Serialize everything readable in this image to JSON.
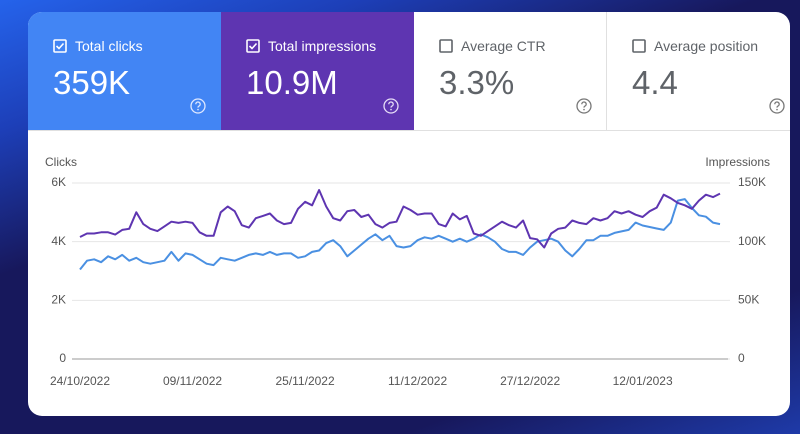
{
  "cards": [
    {
      "label": "Total clicks",
      "value": "359K"
    },
    {
      "label": "Total impressions",
      "value": "10.9M"
    },
    {
      "label": "Average CTR",
      "value": "3.3%"
    },
    {
      "label": "Average position",
      "value": "4.4"
    }
  ],
  "chart_data": {
    "type": "line",
    "y_label": "Clicks",
    "y2_label": "Impressions",
    "categories": [
      "24/10/2022",
      null,
      null,
      null,
      null,
      null,
      null,
      null,
      null,
      null,
      null,
      null,
      null,
      null,
      null,
      null,
      "09/11/2022",
      null,
      null,
      null,
      null,
      null,
      null,
      null,
      null,
      null,
      null,
      null,
      null,
      null,
      null,
      null,
      "25/11/2022",
      null,
      null,
      null,
      null,
      null,
      null,
      null,
      null,
      null,
      null,
      null,
      null,
      null,
      null,
      null,
      "11/12/2022",
      null,
      null,
      null,
      null,
      null,
      null,
      null,
      null,
      null,
      null,
      null,
      null,
      null,
      null,
      null,
      "27/12/2022",
      null,
      null,
      null,
      null,
      null,
      null,
      null,
      null,
      null,
      null,
      null,
      null,
      null,
      null,
      null,
      "12/01/2023",
      null,
      null,
      null,
      null,
      null,
      null,
      null,
      null,
      null,
      null,
      null
    ],
    "series": [
      {
        "name": "Clicks",
        "color": "#4a90e2",
        "values": [
          3050,
          3350,
          3400,
          3300,
          3500,
          3400,
          3550,
          3350,
          3450,
          3300,
          3250,
          3300,
          3350,
          3650,
          3350,
          3600,
          3550,
          3400,
          3250,
          3200,
          3450,
          3400,
          3350,
          3450,
          3550,
          3600,
          3550,
          3650,
          3550,
          3600,
          3600,
          3450,
          3500,
          3650,
          3700,
          3950,
          4050,
          3850,
          3500,
          3700,
          3900,
          4100,
          4250,
          4050,
          4200,
          3850,
          3800,
          3850,
          4050,
          4150,
          4100,
          4200,
          4100,
          4000,
          4100,
          4000,
          4100,
          4250,
          4150,
          4000,
          3750,
          3650,
          3650,
          3550,
          3800,
          4000,
          4050,
          4100,
          4000,
          3700,
          3500,
          3750,
          4050,
          4050,
          4200,
          4200,
          4300,
          4350,
          4400,
          4650,
          4550,
          4500,
          4450,
          4400,
          4650,
          5400,
          5450,
          5150,
          4900,
          4850,
          4650,
          4600
        ]
      },
      {
        "name": "Impressions",
        "color": "#5e35b1",
        "axis": "y2",
        "values": [
          104000,
          107000,
          107000,
          108000,
          108000,
          106000,
          110000,
          111000,
          125000,
          115000,
          111000,
          109000,
          113000,
          117000,
          116000,
          117000,
          116000,
          108000,
          105000,
          105000,
          125000,
          130000,
          126000,
          114000,
          112000,
          120000,
          122000,
          124000,
          118000,
          115000,
          116000,
          128000,
          134000,
          131000,
          144000,
          130000,
          120000,
          118000,
          126000,
          127000,
          121000,
          123000,
          115000,
          112000,
          116000,
          117000,
          130000,
          127000,
          123000,
          124000,
          124000,
          115000,
          113000,
          124000,
          119000,
          122000,
          107000,
          105000,
          109000,
          113000,
          117000,
          114000,
          112000,
          118000,
          103000,
          102000,
          95000,
          107000,
          111000,
          112000,
          118000,
          116000,
          115000,
          120000,
          118000,
          120000,
          126000,
          124000,
          126000,
          123000,
          121000,
          126000,
          129000,
          140000,
          137000,
          133000,
          131000,
          128000,
          135000,
          140000,
          138000,
          141000
        ]
      }
    ],
    "ylim": [
      0,
      6000
    ],
    "yticks": [
      0,
      {
        "value": 2000,
        "label": "2K"
      },
      {
        "value": 4000,
        "label": "4K"
      },
      {
        "value": 6000,
        "label": "6K"
      }
    ],
    "y2lim": [
      0,
      150000
    ],
    "y2ticks": [
      0,
      {
        "value": 50000,
        "label": "50K"
      },
      {
        "value": 100000,
        "label": "100K"
      },
      {
        "value": 150000,
        "label": "150K"
      }
    ],
    "grid": true
  }
}
